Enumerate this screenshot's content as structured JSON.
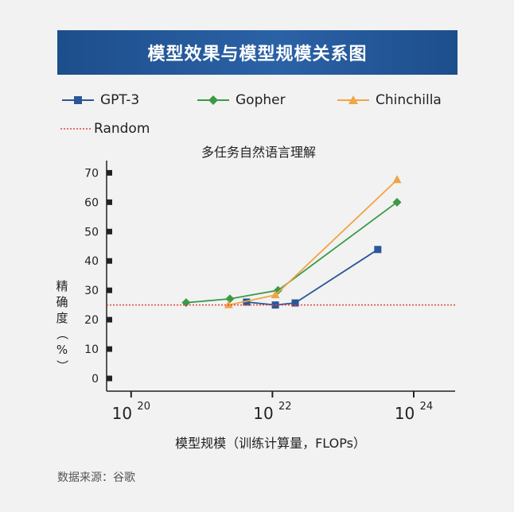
{
  "header": {
    "title": "模型效果与模型规模关系图"
  },
  "legend": {
    "gpt3": "GPT-3",
    "gopher": "Gopher",
    "chinchilla": "Chinchilla",
    "random": "Random"
  },
  "footer": {
    "source": "数据来源：谷歌"
  },
  "chart_data": {
    "type": "line",
    "title": "多任务自然语言理解",
    "xlabel": "模型规模（训练计算量，FLOPs）",
    "ylabel": "精确度（%）",
    "x_scale": "log",
    "xlim": [
      1e+19,
      1e+24
    ],
    "ylim": [
      0,
      72
    ],
    "x_ticks": [
      1e+20,
      1e+22,
      1e+24
    ],
    "x_tick_labels": [
      {
        "base": "10",
        "exp": "20"
      },
      {
        "base": "10",
        "exp": "22"
      },
      {
        "base": "10",
        "exp": "24"
      }
    ],
    "y_ticks": [
      0,
      10,
      20,
      30,
      40,
      50,
      60,
      70
    ],
    "y_tick_labels": [
      "0",
      "10",
      "20",
      "30",
      "40",
      "50",
      "60",
      "70"
    ],
    "grid": false,
    "series": [
      {
        "name": "GPT-3",
        "color": "#2b5797",
        "marker": "square",
        "x": [
          4.3e+21,
          1.1e+22,
          2.1e+22,
          3.1e+23
        ],
        "y": [
          26.0,
          25.0,
          25.7,
          43.9
        ]
      },
      {
        "name": "Gopher",
        "color": "#3a9a47",
        "marker": "diamond",
        "x": [
          6e+20,
          2.5e+21,
          1.2e+22,
          5.8e+23
        ],
        "y": [
          25.8,
          27.1,
          30.0,
          60.0
        ]
      },
      {
        "name": "Chinchilla",
        "color": "#f0a445",
        "marker": "triangle",
        "x": [
          2.4e+21,
          1.1e+22,
          5.8e+23
        ],
        "y": [
          25.0,
          28.4,
          67.6
        ]
      },
      {
        "name": "Random",
        "color": "#e0413a",
        "line": "dotted",
        "y": 25
      }
    ]
  }
}
